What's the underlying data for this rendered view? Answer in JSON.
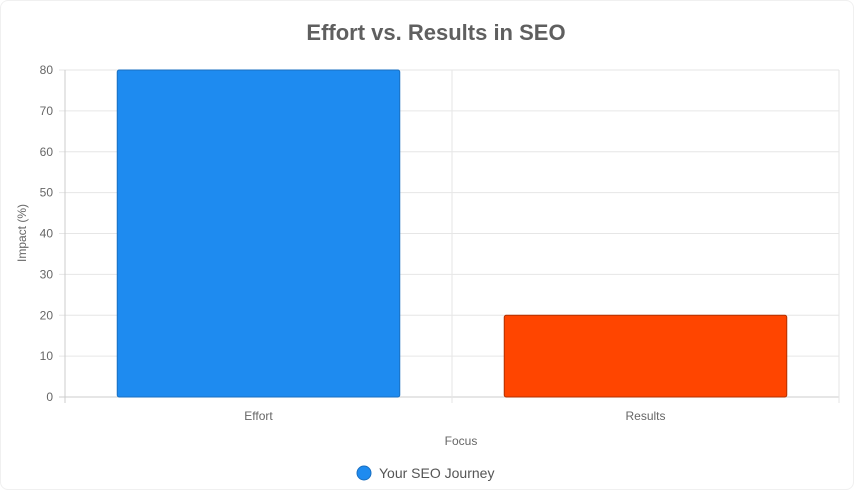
{
  "chart_data": {
    "type": "bar",
    "title": "Effort vs. Results in SEO",
    "categories": [
      "Effort",
      "Results"
    ],
    "series": [
      {
        "name": "Your SEO Journey",
        "values": [
          80,
          20
        ]
      }
    ],
    "bar_colors": [
      "#1e8bf0",
      "#ff4500"
    ],
    "bar_border_colors": [
      "#1a6fc0",
      "#b03000"
    ],
    "legend_color": "#1e8bf0",
    "xlabel": "Focus",
    "ylabel": "Impact (%)",
    "ylim": [
      0,
      80
    ],
    "yticks": [
      0,
      10,
      20,
      30,
      40,
      50,
      60,
      70,
      80
    ],
    "grid": true,
    "legend_position": "bottom"
  }
}
